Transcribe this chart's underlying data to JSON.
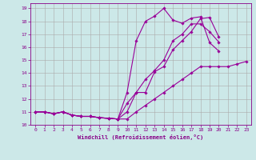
{
  "xlabel": "Windchill (Refroidissement éolien,°C)",
  "bg_color": "#cce8e8",
  "line_color": "#990099",
  "grid_color": "#aaaaaa",
  "xlim": [
    -0.5,
    23.5
  ],
  "ylim": [
    10,
    19.4
  ],
  "xticks": [
    0,
    1,
    2,
    3,
    4,
    5,
    6,
    7,
    8,
    9,
    10,
    11,
    12,
    13,
    14,
    15,
    16,
    17,
    18,
    19,
    20,
    21,
    22,
    23
  ],
  "yticks": [
    10,
    11,
    12,
    13,
    14,
    15,
    16,
    17,
    18,
    19
  ],
  "lines": [
    {
      "x": [
        0,
        1,
        2,
        3,
        4,
        5,
        6,
        7,
        8,
        9,
        10,
        11,
        12,
        13,
        14,
        15,
        16,
        17,
        18,
        19,
        20,
        21
      ],
      "y": [
        11.0,
        11.0,
        10.85,
        11.0,
        10.75,
        10.65,
        10.65,
        10.55,
        10.5,
        10.45,
        12.5,
        16.5,
        18.0,
        18.4,
        19.0,
        18.1,
        17.85,
        18.25,
        18.35,
        16.35,
        15.7,
        null
      ]
    },
    {
      "x": [
        0,
        1,
        2,
        3,
        4,
        5,
        6,
        7,
        8,
        9,
        10,
        11,
        12,
        13,
        14,
        15,
        16,
        17,
        18,
        19,
        20,
        21,
        22,
        23
      ],
      "y": [
        11.0,
        11.0,
        10.85,
        11.0,
        10.75,
        10.65,
        10.65,
        10.55,
        10.5,
        10.45,
        10.45,
        11.0,
        11.5,
        12.0,
        12.5,
        13.0,
        13.5,
        14.0,
        14.5,
        14.5,
        14.5,
        14.5,
        14.7,
        14.9
      ]
    },
    {
      "x": [
        0,
        1,
        2,
        3,
        4,
        5,
        6,
        7,
        8,
        9,
        10,
        11,
        12,
        13,
        14,
        15,
        16,
        17,
        18,
        19,
        20,
        21
      ],
      "y": [
        11.0,
        11.0,
        10.85,
        11.0,
        10.75,
        10.65,
        10.65,
        10.55,
        10.5,
        10.45,
        11.0,
        12.5,
        13.5,
        14.2,
        15.0,
        16.5,
        17.0,
        17.8,
        17.8,
        17.2,
        16.4,
        null
      ]
    },
    {
      "x": [
        0,
        1,
        2,
        3,
        4,
        5,
        6,
        7,
        8,
        9,
        10,
        11,
        12,
        13,
        14,
        15,
        16,
        17,
        18,
        19,
        20,
        21
      ],
      "y": [
        11.0,
        11.0,
        10.85,
        11.0,
        10.75,
        10.65,
        10.65,
        10.55,
        10.5,
        10.45,
        11.65,
        12.5,
        12.5,
        14.1,
        14.5,
        15.8,
        16.5,
        17.2,
        18.2,
        18.3,
        16.8,
        null
      ]
    }
  ]
}
